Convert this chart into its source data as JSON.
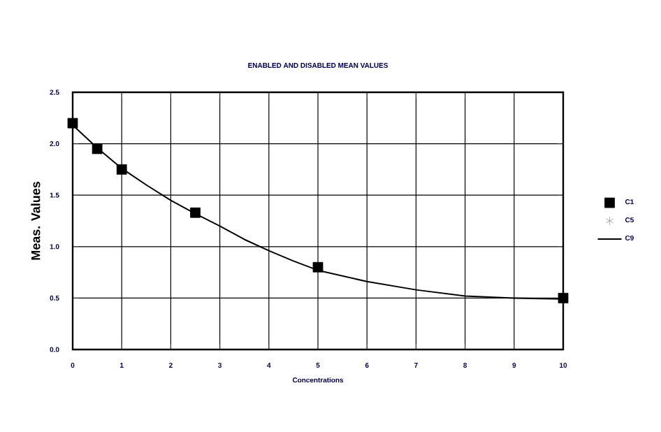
{
  "chart_data": {
    "type": "scatter",
    "title": "ENABLED AND DISABLED MEAN VALUES",
    "xlabel": "Concentrations",
    "ylabel": "Meas. Values",
    "x": [
      0,
      0.5,
      1,
      2.5,
      5,
      10
    ],
    "series": [
      {
        "name": "C1",
        "color": "#000000",
        "marker": "square",
        "values": [
          2.2,
          1.95,
          1.75,
          1.33,
          0.8,
          0.5
        ]
      },
      {
        "name": "C5",
        "color": "#999999",
        "marker": "star",
        "values": [
          null,
          null,
          null,
          null,
          null,
          null
        ]
      },
      {
        "name": "C9",
        "type": "line",
        "color": "#000000",
        "marker": "none",
        "line_style": "solid",
        "x": [
          0,
          0.5,
          1,
          1.5,
          2,
          2.5,
          3,
          3.5,
          4,
          4.5,
          5,
          6,
          7,
          8,
          9,
          10
        ],
        "values": [
          2.18,
          1.96,
          1.76,
          1.6,
          1.45,
          1.32,
          1.2,
          1.07,
          0.96,
          0.86,
          0.77,
          0.66,
          0.58,
          0.52,
          0.5,
          0.49
        ]
      }
    ],
    "xlim": [
      0,
      10
    ],
    "ylim": [
      0,
      2.5
    ],
    "xticks": [
      0,
      1,
      2,
      3,
      4,
      5,
      6,
      7,
      8,
      9,
      10
    ],
    "yticks": [
      {
        "value": 0,
        "label": "0.0"
      },
      {
        "value": 0.5,
        "label": "0.5"
      },
      {
        "value": 1,
        "label": "1.0"
      },
      {
        "value": 1.5,
        "label": "1.5"
      },
      {
        "value": 2,
        "label": "2.0"
      },
      {
        "value": 2.5,
        "label": "2.5"
      }
    ],
    "grid": true,
    "legend": "right"
  }
}
